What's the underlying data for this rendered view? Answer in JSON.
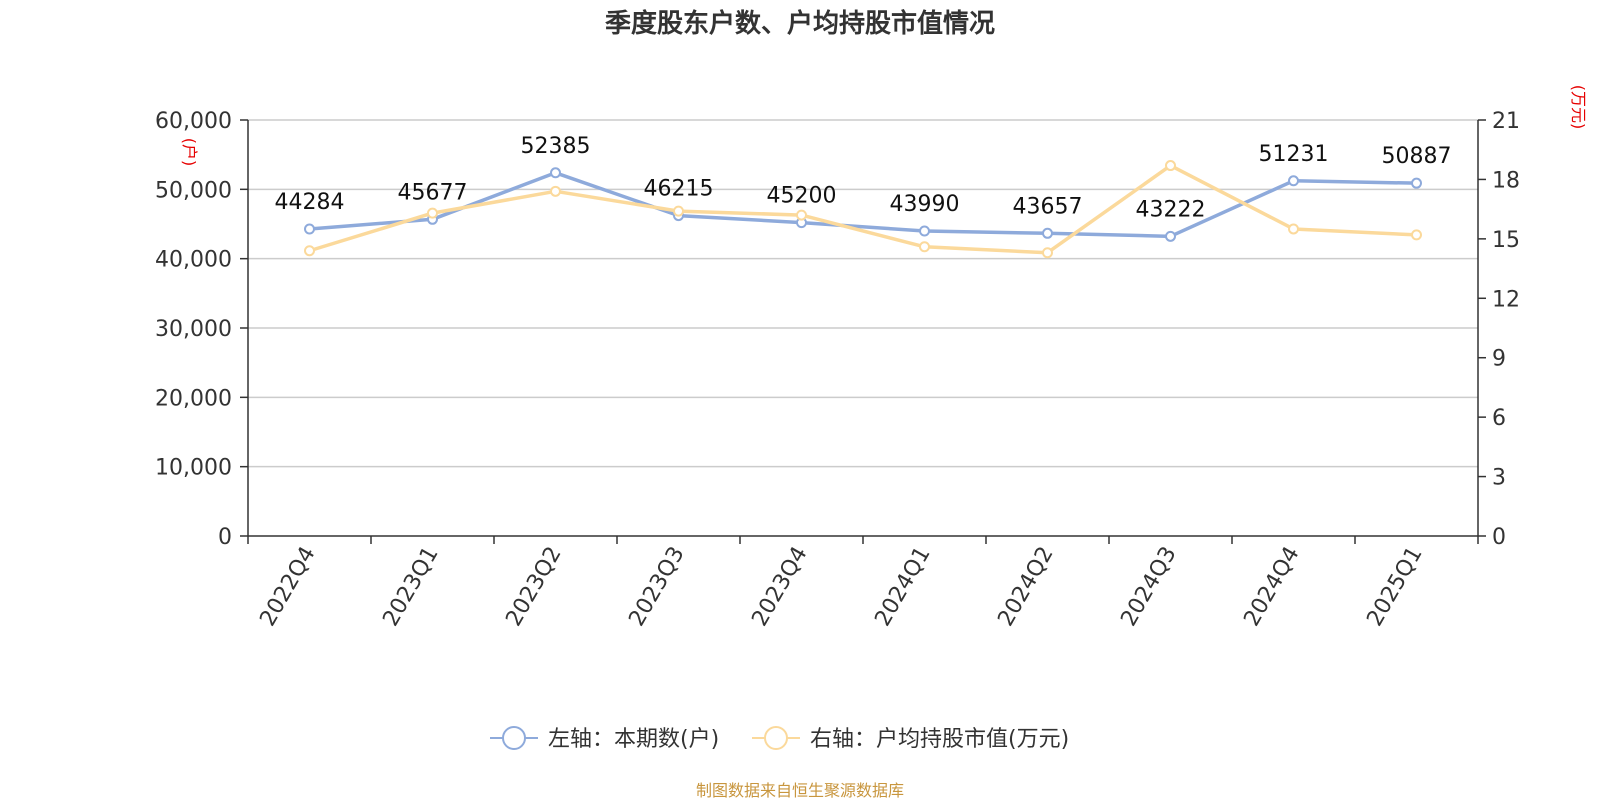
{
  "chart_data": {
    "type": "line",
    "title": "季度股东户数、户均持股市值情况",
    "categories": [
      "2022Q4",
      "2023Q1",
      "2023Q2",
      "2023Q3",
      "2023Q4",
      "2024Q1",
      "2024Q2",
      "2024Q3",
      "2024Q4",
      "2025Q1"
    ],
    "series": [
      {
        "name": "左轴：本期数(户)",
        "axis": "left",
        "color": "#8eaadb",
        "values": [
          44284,
          45677,
          52385,
          46215,
          45200,
          43990,
          43657,
          43222,
          51231,
          50887
        ],
        "data_labels": [
          "44284",
          "45677",
          "52385",
          "46215",
          "45200",
          "43990",
          "43657",
          "43222",
          "51231",
          "50887"
        ]
      },
      {
        "name": "右轴：户均持股市值(万元)",
        "axis": "right",
        "color": "#fbd99b",
        "values": [
          14.4,
          16.3,
          17.4,
          16.4,
          16.2,
          14.6,
          14.3,
          18.7,
          15.5,
          15.2
        ]
      }
    ],
    "y_left": {
      "unit": "(户)",
      "ylim": [
        0,
        60000
      ],
      "ticks": [
        0,
        10000,
        20000,
        30000,
        40000,
        50000,
        60000
      ],
      "tick_labels": [
        "0",
        "10,000",
        "20,000",
        "30,000",
        "40,000",
        "50,000",
        "60,000"
      ]
    },
    "y_right": {
      "unit": "(万元)",
      "ylim": [
        0,
        21
      ],
      "ticks": [
        0,
        3,
        6,
        9,
        12,
        15,
        18,
        21
      ],
      "tick_labels": [
        "0",
        "3",
        "6",
        "9",
        "12",
        "15",
        "18",
        "21"
      ]
    },
    "grid": true,
    "legend_position": "bottom",
    "source": "制图数据来自恒生聚源数据库"
  }
}
